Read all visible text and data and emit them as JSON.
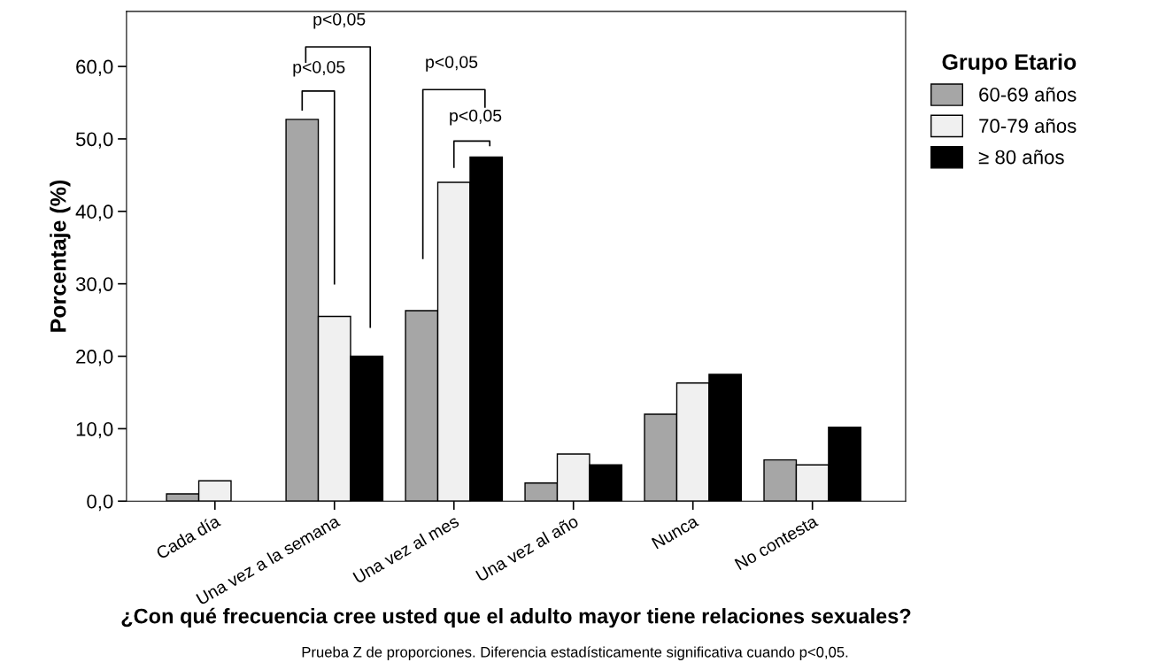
{
  "chart_data": {
    "type": "bar",
    "xlabel": "¿Con qué frecuencia cree usted que el adulto mayor tiene relaciones sexuales?",
    "ylabel": "Porcentaje (%)",
    "legend_title": "Grupo Etario",
    "categories": [
      "Cada día",
      "Una vez a la semana",
      "Una vez al mes",
      "Una vez al año",
      "Nunca",
      "No contesta"
    ],
    "series": [
      {
        "name": "60-69 años",
        "color": "#a6a6a6",
        "values": [
          1.0,
          52.7,
          26.3,
          2.5,
          12.0,
          5.7
        ]
      },
      {
        "name": "70-79 años",
        "color": "#f0f0f0",
        "values": [
          2.8,
          25.5,
          44.0,
          6.5,
          16.3,
          5.0
        ]
      },
      {
        "name": "≥ 80 años",
        "color": "#000000",
        "values": [
          null,
          20.0,
          47.5,
          5.0,
          17.5,
          10.2
        ]
      }
    ],
    "ylim": [
      0,
      67.6
    ],
    "yticks": [
      {
        "value": 0,
        "label": "0,0"
      },
      {
        "value": 10,
        "label": "10,0"
      },
      {
        "value": 20,
        "label": "20,0"
      },
      {
        "value": 30,
        "label": "30,0"
      },
      {
        "value": 40,
        "label": "40,0"
      },
      {
        "value": 50,
        "label": "50,0"
      },
      {
        "value": 60,
        "label": "60,0"
      }
    ],
    "grid": false,
    "legend": "top right",
    "annotations": [
      "p<0,05",
      "p<0,05",
      "p<0,05",
      "p<0,05",
      "Prueba Z de proporciones. Diferencia estadísticamente significativa cuando p<0,05."
    ]
  }
}
